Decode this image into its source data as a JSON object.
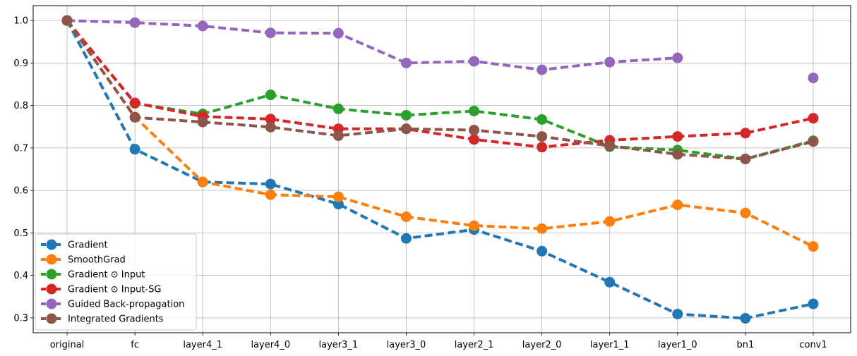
{
  "chart_data": {
    "type": "line",
    "title": "",
    "xlabel": "",
    "ylabel": "",
    "categories": [
      "original",
      "fc",
      "layer4_1",
      "layer4_0",
      "layer3_1",
      "layer3_0",
      "layer2_1",
      "layer2_0",
      "layer1_1",
      "layer1_0",
      "bn1",
      "conv1"
    ],
    "ylim": [
      0.265,
      1.035
    ],
    "yticks": [
      0.3,
      0.4,
      0.5,
      0.6,
      0.7,
      0.8,
      0.9,
      1.0
    ],
    "ytick_labels": [
      "0.3",
      "0.4",
      "0.5",
      "0.6",
      "0.7",
      "0.8",
      "0.9",
      "1.0"
    ],
    "grid": true,
    "legend_position": "bottom-left",
    "line_style": "dashed",
    "marker": "circle",
    "series": [
      {
        "name": "Gradient",
        "color": "#1f77b4",
        "values": [
          1.0,
          0.697,
          0.62,
          0.615,
          0.568,
          0.487,
          0.508,
          0.457,
          0.384,
          0.309,
          0.299,
          0.333
        ]
      },
      {
        "name": "SmoothGrad",
        "color": "#ff7f0e",
        "values": [
          1.0,
          0.773,
          0.62,
          0.59,
          0.585,
          0.538,
          0.517,
          0.51,
          0.527,
          0.566,
          0.547,
          0.468
        ]
      },
      {
        "name": "Gradient ⊙ Input",
        "color": "#2ca02c",
        "values": [
          1.0,
          0.805,
          0.78,
          0.825,
          0.792,
          0.777,
          0.787,
          0.767,
          0.703,
          0.695,
          0.674,
          0.717
        ]
      },
      {
        "name": "Gradient ⊙ Input-SG",
        "color": "#d62728",
        "values": [
          1.0,
          0.806,
          0.774,
          0.768,
          0.745,
          0.745,
          0.72,
          0.702,
          0.718,
          0.727,
          0.735,
          0.77
        ]
      },
      {
        "name": "Guided Back-propagation",
        "color": "#9467bd",
        "values": [
          1.0,
          0.995,
          0.987,
          0.971,
          0.97,
          0.9,
          0.904,
          0.884,
          0.902,
          0.912,
          null,
          0.865
        ]
      },
      {
        "name": "Integrated Gradients",
        "color": "#8c564b",
        "values": [
          1.0,
          0.772,
          0.761,
          0.749,
          0.729,
          0.745,
          0.742,
          0.727,
          0.705,
          0.685,
          0.674,
          0.715
        ]
      }
    ]
  }
}
